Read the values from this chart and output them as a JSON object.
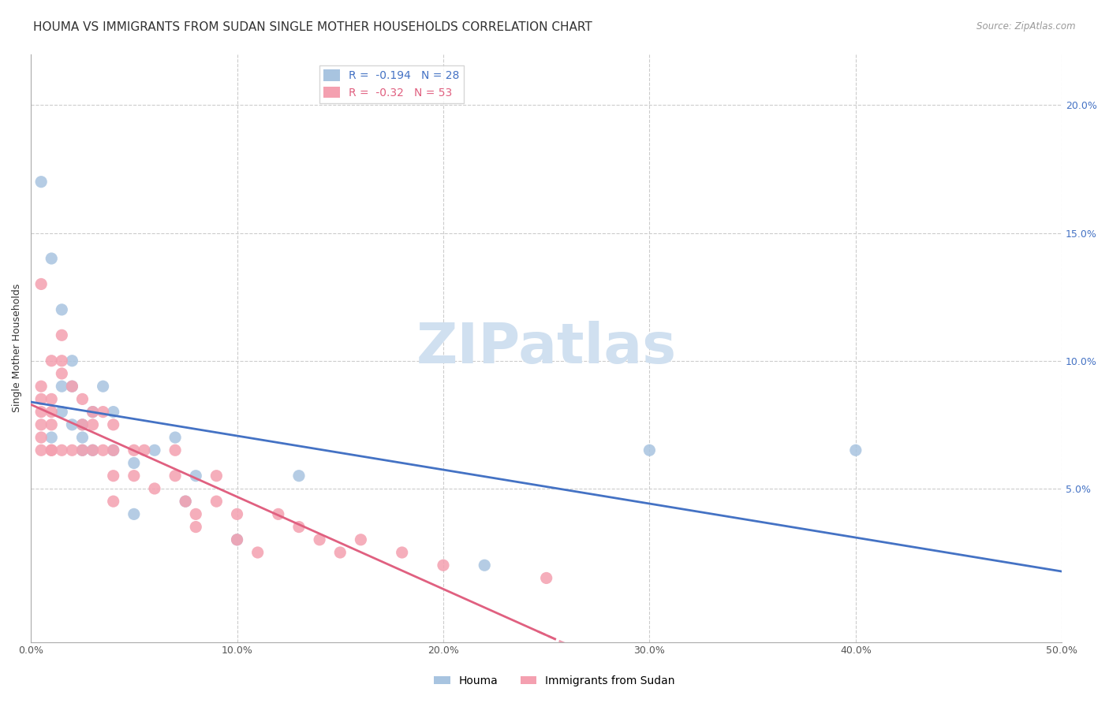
{
  "title": "HOUMA VS IMMIGRANTS FROM SUDAN SINGLE MOTHER HOUSEHOLDS CORRELATION CHART",
  "source": "Source: ZipAtlas.com",
  "ylabel": "Single Mother Households",
  "xlim": [
    0.0,
    0.5
  ],
  "ylim": [
    -0.01,
    0.22
  ],
  "houma_R": -0.194,
  "houma_N": 28,
  "sudan_R": -0.32,
  "sudan_N": 53,
  "houma_color": "#a8c4e0",
  "sudan_color": "#f4a0b0",
  "houma_line_color": "#4472c4",
  "sudan_line_color": "#e06080",
  "background_color": "#ffffff",
  "grid_color": "#cccccc",
  "watermark": "ZIPatlas",
  "houma_x": [
    0.005,
    0.01,
    0.01,
    0.015,
    0.015,
    0.015,
    0.02,
    0.02,
    0.02,
    0.025,
    0.025,
    0.025,
    0.03,
    0.03,
    0.035,
    0.04,
    0.04,
    0.05,
    0.05,
    0.06,
    0.07,
    0.075,
    0.08,
    0.1,
    0.13,
    0.3,
    0.4,
    0.22
  ],
  "houma_y": [
    0.17,
    0.14,
    0.07,
    0.12,
    0.09,
    0.08,
    0.1,
    0.09,
    0.075,
    0.075,
    0.07,
    0.065,
    0.08,
    0.065,
    0.09,
    0.08,
    0.065,
    0.06,
    0.04,
    0.065,
    0.07,
    0.045,
    0.055,
    0.03,
    0.055,
    0.065,
    0.065,
    0.02
  ],
  "sudan_x": [
    0.005,
    0.005,
    0.005,
    0.005,
    0.005,
    0.005,
    0.005,
    0.01,
    0.01,
    0.01,
    0.01,
    0.01,
    0.01,
    0.015,
    0.015,
    0.015,
    0.015,
    0.02,
    0.02,
    0.025,
    0.025,
    0.025,
    0.03,
    0.03,
    0.03,
    0.035,
    0.035,
    0.04,
    0.04,
    0.04,
    0.04,
    0.05,
    0.05,
    0.055,
    0.06,
    0.07,
    0.07,
    0.075,
    0.08,
    0.08,
    0.09,
    0.09,
    0.1,
    0.1,
    0.11,
    0.12,
    0.13,
    0.14,
    0.15,
    0.16,
    0.18,
    0.2,
    0.25
  ],
  "sudan_y": [
    0.13,
    0.09,
    0.085,
    0.08,
    0.075,
    0.07,
    0.065,
    0.1,
    0.085,
    0.08,
    0.075,
    0.065,
    0.065,
    0.11,
    0.1,
    0.095,
    0.065,
    0.09,
    0.065,
    0.085,
    0.075,
    0.065,
    0.08,
    0.075,
    0.065,
    0.08,
    0.065,
    0.075,
    0.065,
    0.055,
    0.045,
    0.065,
    0.055,
    0.065,
    0.05,
    0.065,
    0.055,
    0.045,
    0.04,
    0.035,
    0.055,
    0.045,
    0.04,
    0.03,
    0.025,
    0.04,
    0.035,
    0.03,
    0.025,
    0.03,
    0.025,
    0.02,
    0.015
  ],
  "title_fontsize": 11,
  "axis_label_fontsize": 9,
  "tick_fontsize": 9,
  "legend_fontsize": 10,
  "right_axis_color": "#4472c4",
  "watermark_color": "#d0e0f0",
  "watermark_fontsize": 52
}
